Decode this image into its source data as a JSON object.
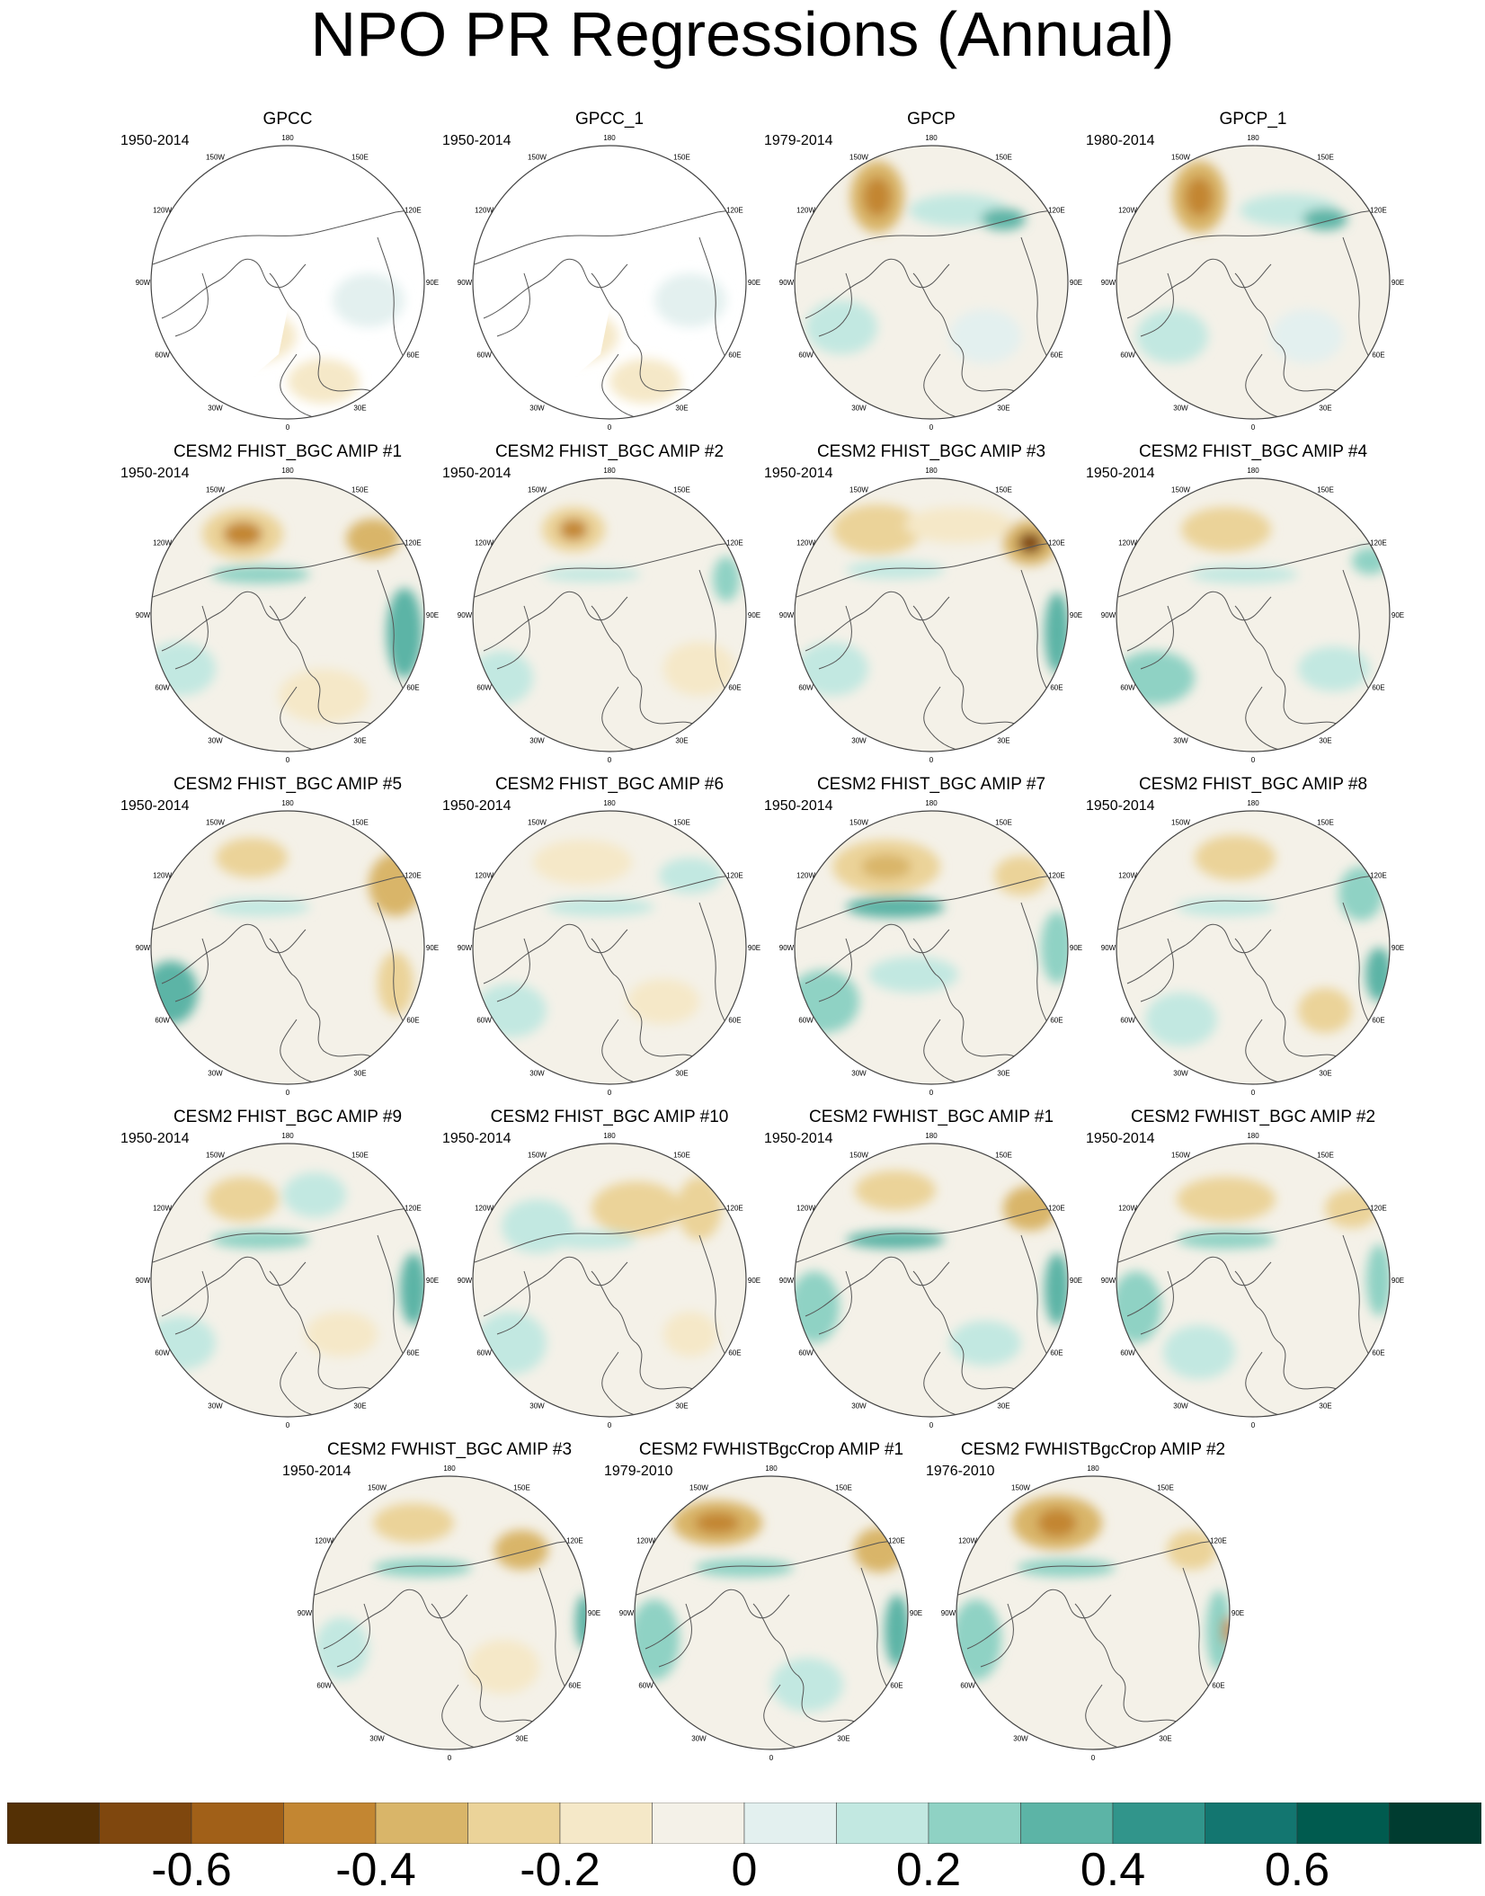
{
  "title": "NPO PR Regressions (Annual)",
  "lon_labels": [
    "180",
    "150E",
    "120E",
    "90E",
    "60E",
    "30E",
    "0",
    "30W",
    "60W",
    "90W",
    "120W",
    "150W"
  ],
  "colorbar": {
    "colors": [
      "#543005",
      "#7f470e",
      "#a16018",
      "#c38632",
      "#d9b569",
      "#ebd399",
      "#f5e8c8",
      "#f4f1e8",
      "#e3f0ef",
      "#c2e8e1",
      "#8fd2c4",
      "#5cb4a6",
      "#31958b",
      "#137670",
      "#005b4f",
      "#003c30"
    ],
    "tick_labels": [
      "-0.6",
      "-0.4",
      "-0.2",
      "0",
      "0.2",
      "0.4",
      "0.6"
    ],
    "tick_values": [
      -0.6,
      -0.4,
      -0.2,
      0,
      0.2,
      0.4,
      0.6
    ],
    "range": [
      -0.8,
      0.8
    ]
  },
  "panels": [
    {
      "title": "GPCC",
      "years": "1950-2014",
      "missing_na": true
    },
    {
      "title": "GPCC_1",
      "years": "1950-2014",
      "missing_na": true
    },
    {
      "title": "GPCP",
      "years": "1979-2014"
    },
    {
      "title": "GPCP_1",
      "years": "1980-2014"
    },
    {
      "title": "CESM2 FHIST_BGC AMIP #1",
      "years": "1950-2014"
    },
    {
      "title": "CESM2 FHIST_BGC AMIP #2",
      "years": "1950-2014"
    },
    {
      "title": "CESM2 FHIST_BGC AMIP #3",
      "years": "1950-2014"
    },
    {
      "title": "CESM2 FHIST_BGC AMIP #4",
      "years": "1950-2014"
    },
    {
      "title": "CESM2 FHIST_BGC AMIP #5",
      "years": "1950-2014"
    },
    {
      "title": "CESM2 FHIST_BGC AMIP #6",
      "years": "1950-2014"
    },
    {
      "title": "CESM2 FHIST_BGC AMIP #7",
      "years": "1950-2014"
    },
    {
      "title": "CESM2 FHIST_BGC AMIP #8",
      "years": "1950-2014"
    },
    {
      "title": "CESM2 FHIST_BGC AMIP #9",
      "years": "1950-2014"
    },
    {
      "title": "CESM2 FHIST_BGC AMIP #10",
      "years": "1950-2014"
    },
    {
      "title": "CESM2 FWHIST_BGC AMIP #1",
      "years": "1950-2014"
    },
    {
      "title": "CESM2 FWHIST_BGC AMIP #2",
      "years": "1950-2014"
    },
    {
      "title": "CESM2 FWHIST_BGC AMIP #3",
      "years": "1950-2014"
    },
    {
      "title": "CESM2 FWHISTBgcCrop AMIP #1",
      "years": "1979-2010"
    },
    {
      "title": "CESM2 FWHISTBgcCrop AMIP #2",
      "years": "1976-2010"
    }
  ]
}
